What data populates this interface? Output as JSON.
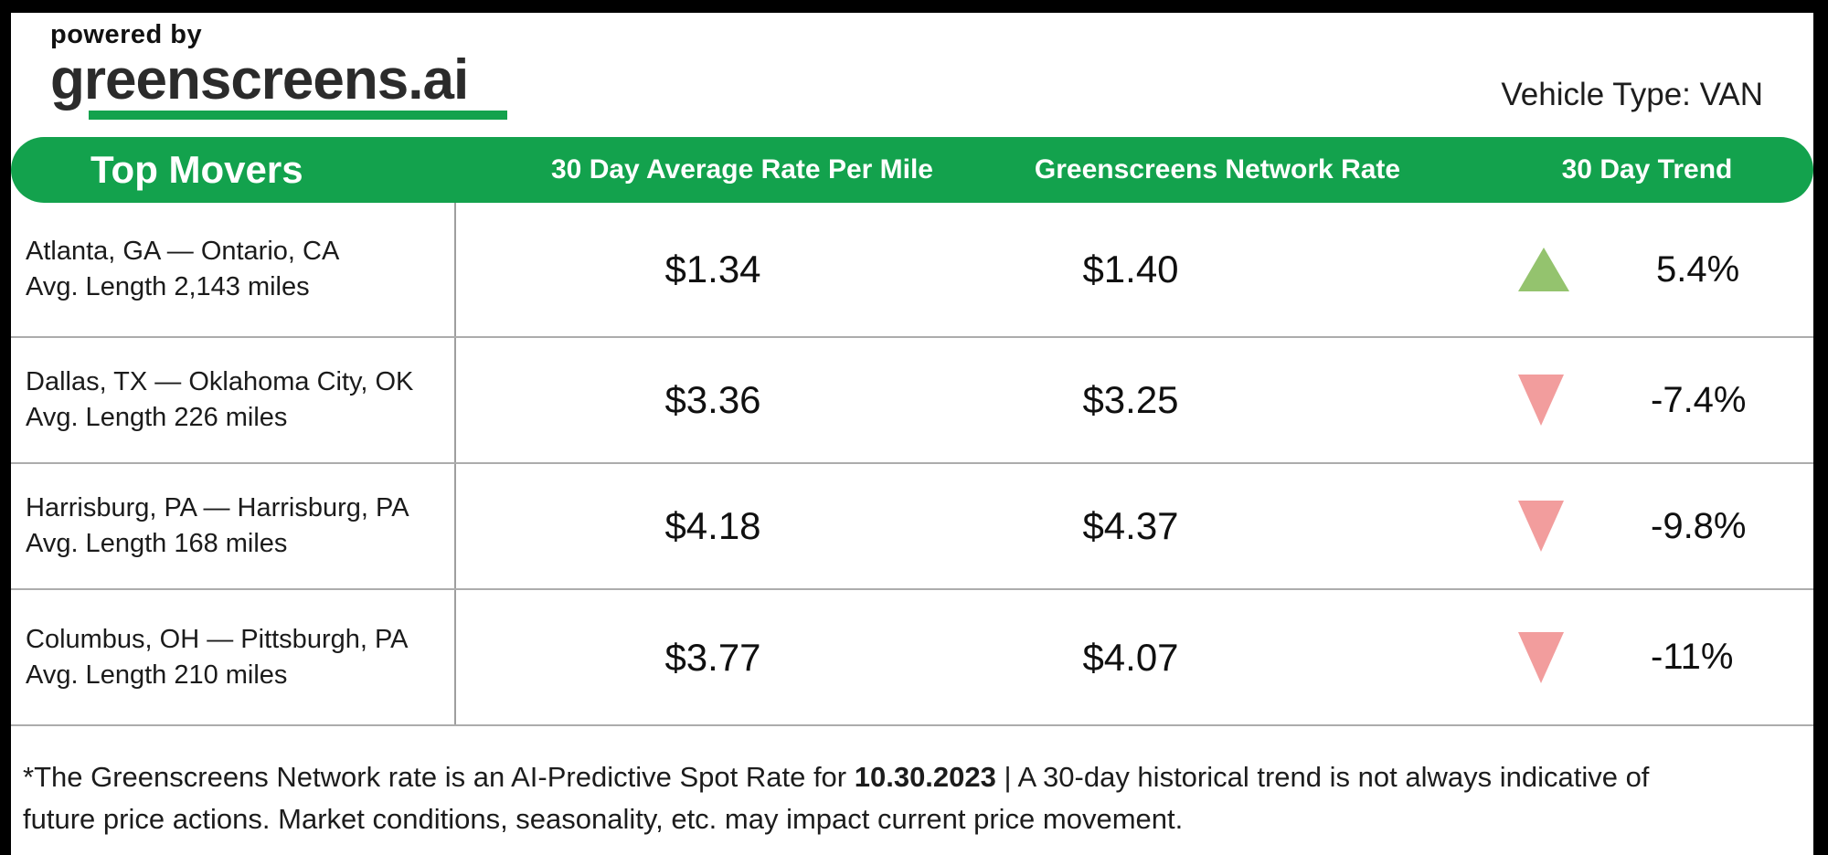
{
  "brand": {
    "powered_by": "powered by",
    "name": "greenscreens.ai"
  },
  "vehicle_type": "Vehicle Type: VAN",
  "table": {
    "title": "Top Movers",
    "columns": [
      "30 Day Average Rate Per Mile",
      "Greenscreens Network Rate",
      "30 Day Trend"
    ],
    "rows": [
      {
        "lane": "Atlanta, GA — Ontario, CA",
        "avg_length": "Avg. Length 2,143 miles",
        "avg_rate": "$1.34",
        "network_rate": "$1.40",
        "trend_direction": "up",
        "trend_value": "5.4%"
      },
      {
        "lane": "Dallas, TX — Oklahoma City, OK",
        "avg_length": "Avg. Length 226 miles",
        "avg_rate": "$3.36",
        "network_rate": "$3.25",
        "trend_direction": "down",
        "trend_value": "-7.4%"
      },
      {
        "lane": "Harrisburg, PA — Harrisburg, PA",
        "avg_length": "Avg. Length 168 miles",
        "avg_rate": "$4.18",
        "network_rate": "$4.37",
        "trend_direction": "down",
        "trend_value": "-9.8%"
      },
      {
        "lane": "Columbus, OH — Pittsburgh, PA",
        "avg_length": "Avg. Length 210 miles",
        "avg_rate": "$3.77",
        "network_rate": "$4.07",
        "trend_direction": "down",
        "trend_value": "-11%"
      }
    ]
  },
  "footnote": {
    "prefix": "*The Greenscreens Network rate is an AI-Predictive Spot Rate for ",
    "date": "10.30.2023",
    "suffix_line1": " | A 30-day historical trend is not always indicative of",
    "line2": "future price actions. Market conditions, seasonality, etc. may impact current price movement."
  },
  "icons": {
    "trend_up_icon": "▲",
    "trend_down_icon": "▼"
  },
  "colors": {
    "brand_green": "#13A24D",
    "trend_up": "#94C36E",
    "trend_down": "#F29D9D",
    "separator_gray": "#ACACAC",
    "text_dark": "#1B1B1B"
  },
  "chart_data": {
    "type": "table",
    "title": "Top Movers",
    "columns": [
      "Lane",
      "30 Day Average Rate Per Mile",
      "Greenscreens Network Rate",
      "30 Day Trend (%)"
    ],
    "rows": [
      [
        "Atlanta, GA — Ontario, CA (Avg. Length 2,143 miles)",
        1.34,
        1.4,
        5.4
      ],
      [
        "Dallas, TX — Oklahoma City, OK (Avg. Length 226 miles)",
        3.36,
        3.25,
        -7.4
      ],
      [
        "Harrisburg, PA — Harrisburg, PA (Avg. Length 168 miles)",
        4.18,
        4.37,
        -9.8
      ],
      [
        "Columbus, OH — Pittsburgh, PA (Avg. Length 210 miles)",
        3.77,
        4.07,
        -11
      ]
    ]
  }
}
